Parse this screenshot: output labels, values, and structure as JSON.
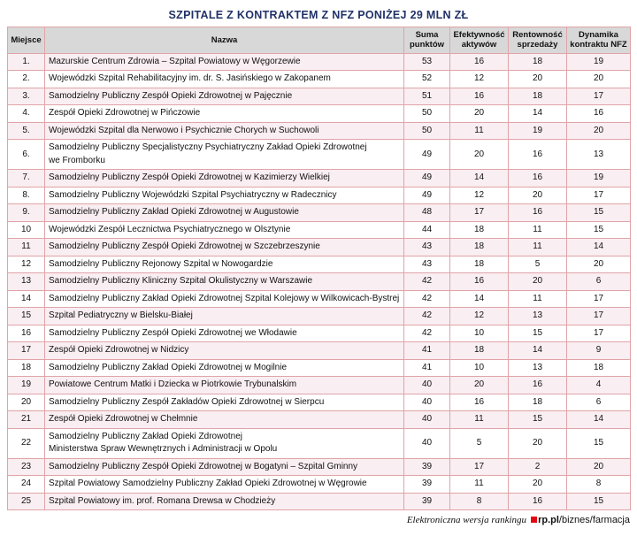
{
  "title": "SZPITALE Z KONTRAKTEM Z NFZ PONIŻEJ 29 MLN ZŁ",
  "table": {
    "columns": [
      "Miejsce",
      "Nazwa",
      "Suma punktów",
      "Efektywność aktywów",
      "Rentowność sprzedaży",
      "Dynamika kontraktu NFZ"
    ],
    "rows": [
      {
        "place": "1.",
        "name": "Mazurskie Centrum Zdrowia – Szpital Powiatowy w Węgorzewie",
        "points": 53,
        "efficiency": 16,
        "profitability": 18,
        "dynamics": 19
      },
      {
        "place": "2.",
        "name": "Wojewódzki Szpital Rehabilitacyjny im. dr. S. Jasińskiego w Zakopanem",
        "points": 52,
        "efficiency": 12,
        "profitability": 20,
        "dynamics": 20
      },
      {
        "place": "3.",
        "name": "Samodzielny Publiczny Zespół Opieki Zdrowotnej w Pajęcznie",
        "points": 51,
        "efficiency": 16,
        "profitability": 18,
        "dynamics": 17
      },
      {
        "place": "4.",
        "name": "Zespół Opieki Zdrowotnej w Pińczowie",
        "points": 50,
        "efficiency": 20,
        "profitability": 14,
        "dynamics": 16
      },
      {
        "place": "5.",
        "name": "Wojewódzki Szpital dla Nerwowo i Psychicznie Chorych w Suchowoli",
        "points": 50,
        "efficiency": 11,
        "profitability": 19,
        "dynamics": 20
      },
      {
        "place": "6.",
        "name": "Samodzielny Publiczny Specjalistyczny Psychiatryczny Zakład Opieki Zdrowotnej\nwe Fromborku",
        "points": 49,
        "efficiency": 20,
        "profitability": 16,
        "dynamics": 13
      },
      {
        "place": "7.",
        "name": "Samodzielny Publiczny Zespół Opieki Zdrowotnej w Kazimierzy Wielkiej",
        "points": 49,
        "efficiency": 14,
        "profitability": 16,
        "dynamics": 19
      },
      {
        "place": "8.",
        "name": "Samodzielny Publiczny Wojewódzki Szpital Psychiatryczny w Radecznicy",
        "points": 49,
        "efficiency": 12,
        "profitability": 20,
        "dynamics": 17
      },
      {
        "place": "9.",
        "name": "Samodzielny Publiczny Zakład Opieki Zdrowotnej w Augustowie",
        "points": 48,
        "efficiency": 17,
        "profitability": 16,
        "dynamics": 15
      },
      {
        "place": "10",
        "name": "Wojewódzki Zespół Lecznictwa Psychiatrycznego w Olsztynie",
        "points": 44,
        "efficiency": 18,
        "profitability": 11,
        "dynamics": 15
      },
      {
        "place": "11",
        "name": "Samodzielny Publiczny Zespół Opieki Zdrowotnej w Szczebrzeszynie",
        "points": 43,
        "efficiency": 18,
        "profitability": 11,
        "dynamics": 14
      },
      {
        "place": "12",
        "name": "Samodzielny Publiczny Rejonowy Szpital w Nowogardzie",
        "points": 43,
        "efficiency": 18,
        "profitability": 5,
        "dynamics": 20
      },
      {
        "place": "13",
        "name": "Samodzielny Publiczny Kliniczny Szpital Okulistyczny w Warszawie",
        "points": 42,
        "efficiency": 16,
        "profitability": 20,
        "dynamics": 6
      },
      {
        "place": "14",
        "name": "Samodzielny Publiczny Zakład Opieki Zdrowotnej Szpital Kolejowy w Wilkowicach-Bystrej",
        "points": 42,
        "efficiency": 14,
        "profitability": 11,
        "dynamics": 17
      },
      {
        "place": "15",
        "name": "Szpital Pediatryczny w Bielsku-Białej",
        "points": 42,
        "efficiency": 12,
        "profitability": 13,
        "dynamics": 17
      },
      {
        "place": "16",
        "name": "Samodzielny Publiczny Zespół Opieki Zdrowotnej we Włodawie",
        "points": 42,
        "efficiency": 10,
        "profitability": 15,
        "dynamics": 17
      },
      {
        "place": "17",
        "name": "Zespół Opieki Zdrowotnej w Nidzicy",
        "points": 41,
        "efficiency": 18,
        "profitability": 14,
        "dynamics": 9
      },
      {
        "place": "18",
        "name": "Samodzielny Publiczny Zakład Opieki Zdrowotnej w Mogilnie",
        "points": 41,
        "efficiency": 10,
        "profitability": 13,
        "dynamics": 18
      },
      {
        "place": "19",
        "name": "Powiatowe Centrum Matki i Dziecka w Piotrkowie Trybunalskim",
        "points": 40,
        "efficiency": 20,
        "profitability": 16,
        "dynamics": 4
      },
      {
        "place": "20",
        "name": "Samodzielny Publiczny Zespół Zakładów Opieki Zdrowotnej w Sierpcu",
        "points": 40,
        "efficiency": 16,
        "profitability": 18,
        "dynamics": 6
      },
      {
        "place": "21",
        "name": "Zespół Opieki Zdrowotnej w Chełmnie",
        "points": 40,
        "efficiency": 11,
        "profitability": 15,
        "dynamics": 14
      },
      {
        "place": "22",
        "name": "Samodzielny Publiczny Zakład Opieki Zdrowotnej\nMinisterstwa Spraw Wewnętrznych i Administracji w Opolu",
        "points": 40,
        "efficiency": 5,
        "profitability": 20,
        "dynamics": 15
      },
      {
        "place": "23",
        "name": "Samodzielny Publiczny Zespół Opieki Zdrowotnej w Bogatyni – Szpital Gminny",
        "points": 39,
        "efficiency": 17,
        "profitability": 2,
        "dynamics": 20
      },
      {
        "place": "24",
        "name": "Szpital Powiatowy Samodzielny Publiczny Zakład Opieki Zdrowotnej w Węgrowie",
        "points": 39,
        "efficiency": 11,
        "profitability": 20,
        "dynamics": 8
      },
      {
        "place": "25",
        "name": "Szpital Powiatowy im. prof. Romana Drewsa w Chodzieży",
        "points": 39,
        "efficiency": 8,
        "profitability": 16,
        "dynamics": 15
      }
    ]
  },
  "footer": {
    "note": "Elektroniczna wersja rankingu",
    "brand": "rp.pl",
    "path": "/biznes/farmacja",
    "square_icon": "red-square"
  },
  "colors": {
    "title_color": "#223268",
    "border_color": "#e0a4a8",
    "header_bg": "#d8d8d8",
    "stripe_bg": "#f9eef2",
    "brand_red": "#e30613",
    "text_color": "#111111"
  }
}
